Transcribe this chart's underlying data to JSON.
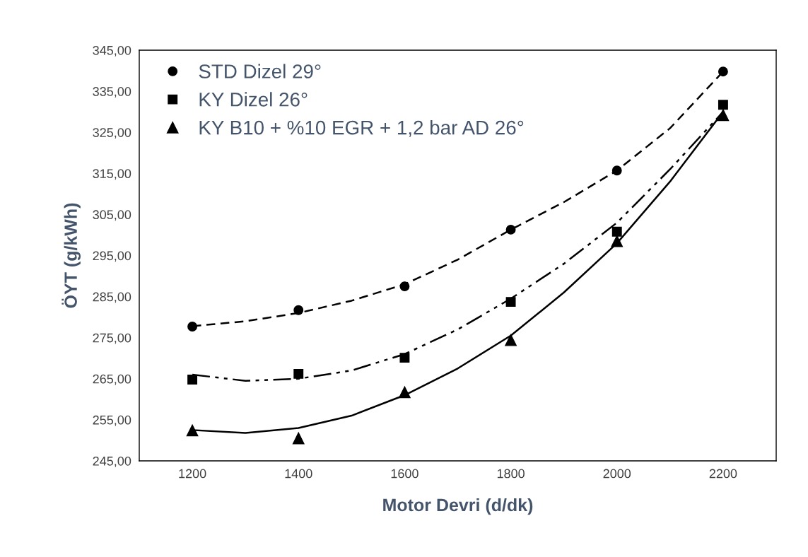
{
  "chart_data": {
    "type": "scatter",
    "xlabel": "Motor Devri (d/dk)",
    "ylabel": "ÖYT (g/kWh)",
    "xlim": [
      1100,
      2300
    ],
    "xticks": [
      1200,
      1400,
      1600,
      1800,
      2000,
      2200
    ],
    "ylim": [
      245,
      345
    ],
    "yticks": [
      {
        "value": 245,
        "label": "245,00"
      },
      {
        "value": 255,
        "label": "255,00"
      },
      {
        "value": 265,
        "label": "265,00"
      },
      {
        "value": 275,
        "label": "275,00"
      },
      {
        "value": 285,
        "label": "285,00"
      },
      {
        "value": 295,
        "label": "295,00"
      },
      {
        "value": 305,
        "label": "305,00"
      },
      {
        "value": 315,
        "label": "315,00"
      },
      {
        "value": 325,
        "label": "325,00"
      },
      {
        "value": 335,
        "label": "335,00"
      },
      {
        "value": 345,
        "label": "345,00"
      }
    ],
    "grid": false,
    "legend": "top left",
    "series": [
      {
        "name": "STD Dizel 29°",
        "type": "scatter",
        "marker": "circle",
        "color": "#000000",
        "x": [
          1200,
          1400,
          1600,
          1800,
          2000,
          2200
        ],
        "values": [
          277.7,
          281.7,
          287.5,
          301.3,
          315.7,
          339.8
        ]
      },
      {
        "name": "KY Dizel 26°",
        "type": "scatter",
        "marker": "square",
        "color": "#000000",
        "x": [
          1200,
          1400,
          1600,
          1800,
          2000,
          2200
        ],
        "values": [
          264.8,
          266.2,
          270.1,
          283.7,
          300.8,
          331.7
        ]
      },
      {
        "name": "KY B10 + %10 EGR + 1,2 bar AD 26°",
        "type": "scatter",
        "marker": "triangle",
        "color": "#000000",
        "x": [
          1200,
          1400,
          1600,
          1800,
          2000,
          2200
        ],
        "values": [
          252.4,
          250.5,
          261.7,
          274.4,
          298.5,
          329.2
        ]
      },
      {
        "type": "line",
        "line_style": "dashed",
        "color": "#000000",
        "x": [
          1200,
          1300,
          1400,
          1500,
          1600,
          1700,
          1800,
          1900,
          2000,
          2100,
          2200
        ],
        "values": [
          277.8,
          279,
          281,
          284,
          288,
          294,
          301.3,
          308,
          315.7,
          326,
          339.8
        ]
      },
      {
        "type": "line",
        "line_style": "dashdot",
        "color": "#000000",
        "x": [
          1200,
          1300,
          1400,
          1500,
          1600,
          1700,
          1800,
          1900,
          2000,
          2100,
          2200
        ],
        "values": [
          266,
          264.5,
          265,
          267,
          271,
          277,
          284.5,
          293,
          303,
          316,
          330
        ]
      },
      {
        "type": "line",
        "line_style": "solid",
        "color": "#000000",
        "x": [
          1200,
          1300,
          1400,
          1500,
          1600,
          1700,
          1800,
          1900,
          2000,
          2100,
          2200
        ],
        "values": [
          252.5,
          251.8,
          253,
          256,
          261,
          267.5,
          275.5,
          286,
          298,
          313,
          330
        ]
      }
    ]
  }
}
